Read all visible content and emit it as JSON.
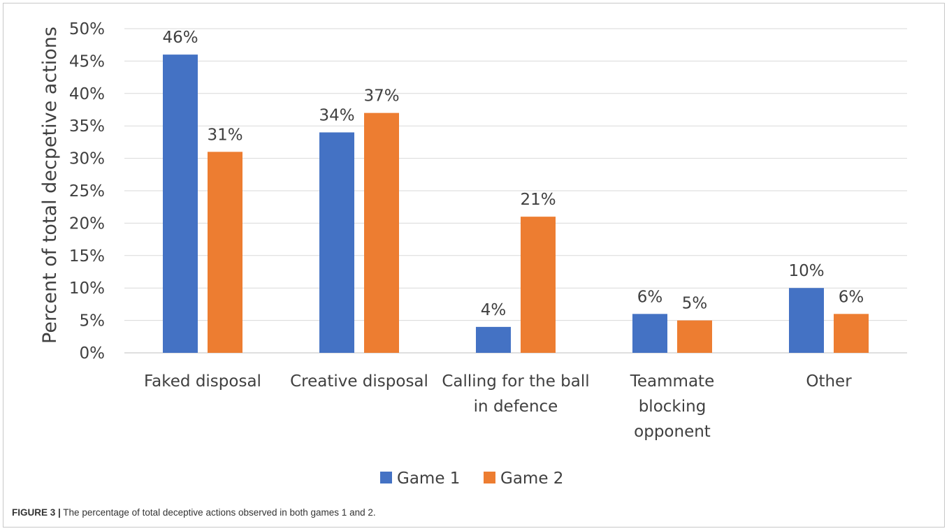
{
  "figure": {
    "label": "FIGURE 3 |",
    "caption": " The percentage of total deceptive actions observed in both games 1 and 2."
  },
  "chart_data": {
    "type": "bar",
    "title": "",
    "xlabel": "",
    "ylabel": "Percent of total decpetive actions",
    "ylim": [
      0,
      50
    ],
    "ytick_step": 5,
    "ytick_format": "percent",
    "grid": true,
    "legend_position": "bottom",
    "categories": [
      [
        "Faked disposal"
      ],
      [
        "Creative disposal"
      ],
      [
        "Calling for the ball",
        "in defence"
      ],
      [
        "Teammate",
        "blocking",
        "opponent"
      ],
      [
        "Other"
      ]
    ],
    "series": [
      {
        "name": "Game 1",
        "color": "#4472c4",
        "values": [
          46,
          34,
          4,
          6,
          10
        ],
        "labels": [
          "46%",
          "34%",
          "4%",
          "6%",
          "10%"
        ]
      },
      {
        "name": "Game 2",
        "color": "#ed7d31",
        "values": [
          31,
          37,
          21,
          5,
          6
        ],
        "labels": [
          "31%",
          "37%",
          "21%",
          "5%",
          "6%"
        ]
      }
    ]
  }
}
